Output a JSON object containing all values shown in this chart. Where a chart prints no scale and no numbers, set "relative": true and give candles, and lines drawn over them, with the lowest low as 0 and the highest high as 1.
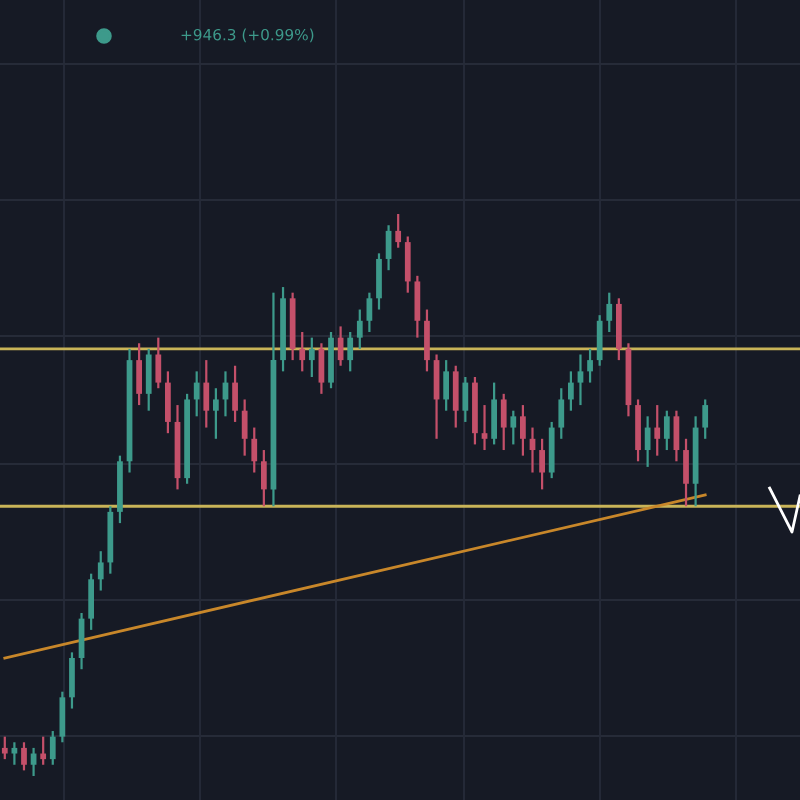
{
  "chart_data": {
    "type": "candlestick",
    "relative": true,
    "grid": true,
    "categories": [
      null,
      null,
      null,
      null,
      null,
      null,
      null,
      null,
      null,
      null,
      null,
      null,
      null,
      null,
      null,
      null,
      null,
      null,
      null,
      null,
      null,
      null,
      null,
      null,
      null,
      null,
      null,
      null,
      null,
      null,
      null,
      null,
      null,
      null,
      null,
      null,
      null,
      null,
      null,
      null,
      null,
      null,
      null,
      null,
      null,
      null,
      null,
      null,
      null,
      null,
      null,
      null,
      null,
      null,
      null,
      null,
      null,
      null,
      null,
      null,
      null,
      null,
      null,
      null,
      null,
      null,
      null,
      null,
      null,
      null,
      null,
      null,
      null,
      null
    ],
    "ohlc": [
      [
        0.05,
        0.07,
        0.03,
        0.04
      ],
      [
        0.04,
        0.06,
        0.02,
        0.05
      ],
      [
        0.05,
        0.06,
        0.01,
        0.02
      ],
      [
        0.02,
        0.05,
        0.0,
        0.04
      ],
      [
        0.04,
        0.07,
        0.02,
        0.03
      ],
      [
        0.03,
        0.08,
        0.02,
        0.07
      ],
      [
        0.07,
        0.15,
        0.06,
        0.14
      ],
      [
        0.14,
        0.22,
        0.12,
        0.21
      ],
      [
        0.21,
        0.29,
        0.19,
        0.28
      ],
      [
        0.28,
        0.36,
        0.26,
        0.35
      ],
      [
        0.35,
        0.4,
        0.33,
        0.38
      ],
      [
        0.38,
        0.48,
        0.36,
        0.47
      ],
      [
        0.47,
        0.57,
        0.45,
        0.56
      ],
      [
        0.56,
        0.76,
        0.54,
        0.74
      ],
      [
        0.74,
        0.77,
        0.66,
        0.68
      ],
      [
        0.68,
        0.76,
        0.65,
        0.75
      ],
      [
        0.75,
        0.78,
        0.69,
        0.7
      ],
      [
        0.7,
        0.72,
        0.61,
        0.63
      ],
      [
        0.63,
        0.66,
        0.51,
        0.53
      ],
      [
        0.53,
        0.68,
        0.52,
        0.67
      ],
      [
        0.67,
        0.72,
        0.64,
        0.7
      ],
      [
        0.7,
        0.74,
        0.62,
        0.65
      ],
      [
        0.65,
        0.69,
        0.6,
        0.67
      ],
      [
        0.67,
        0.72,
        0.64,
        0.7
      ],
      [
        0.7,
        0.73,
        0.63,
        0.65
      ],
      [
        0.65,
        0.67,
        0.57,
        0.6
      ],
      [
        0.6,
        0.62,
        0.54,
        0.56
      ],
      [
        0.56,
        0.58,
        0.48,
        0.51
      ],
      [
        0.51,
        0.86,
        0.48,
        0.74
      ],
      [
        0.74,
        0.87,
        0.72,
        0.85
      ],
      [
        0.85,
        0.86,
        0.74,
        0.76
      ],
      [
        0.76,
        0.79,
        0.72,
        0.74
      ],
      [
        0.74,
        0.78,
        0.71,
        0.76
      ],
      [
        0.76,
        0.77,
        0.68,
        0.7
      ],
      [
        0.7,
        0.79,
        0.69,
        0.78
      ],
      [
        0.78,
        0.8,
        0.73,
        0.74
      ],
      [
        0.74,
        0.79,
        0.72,
        0.78
      ],
      [
        0.78,
        0.83,
        0.76,
        0.81
      ],
      [
        0.81,
        0.86,
        0.79,
        0.85
      ],
      [
        0.85,
        0.93,
        0.83,
        0.92
      ],
      [
        0.92,
        0.98,
        0.9,
        0.97
      ],
      [
        0.97,
        1.0,
        0.94,
        0.95
      ],
      [
        0.95,
        0.96,
        0.86,
        0.88
      ],
      [
        0.88,
        0.89,
        0.78,
        0.81
      ],
      [
        0.81,
        0.83,
        0.72,
        0.74
      ],
      [
        0.74,
        0.75,
        0.6,
        0.67
      ],
      [
        0.67,
        0.74,
        0.65,
        0.72
      ],
      [
        0.72,
        0.73,
        0.62,
        0.65
      ],
      [
        0.65,
        0.71,
        0.63,
        0.7
      ],
      [
        0.7,
        0.71,
        0.59,
        0.61
      ],
      [
        0.61,
        0.66,
        0.58,
        0.6
      ],
      [
        0.6,
        0.7,
        0.59,
        0.67
      ],
      [
        0.67,
        0.68,
        0.58,
        0.62
      ],
      [
        0.62,
        0.65,
        0.59,
        0.64
      ],
      [
        0.64,
        0.66,
        0.57,
        0.6
      ],
      [
        0.6,
        0.62,
        0.54,
        0.58
      ],
      [
        0.58,
        0.6,
        0.51,
        0.54
      ],
      [
        0.54,
        0.63,
        0.53,
        0.62
      ],
      [
        0.62,
        0.69,
        0.6,
        0.67
      ],
      [
        0.67,
        0.72,
        0.65,
        0.7
      ],
      [
        0.7,
        0.75,
        0.66,
        0.72
      ],
      [
        0.72,
        0.76,
        0.7,
        0.74
      ],
      [
        0.74,
        0.82,
        0.73,
        0.81
      ],
      [
        0.81,
        0.86,
        0.79,
        0.84
      ],
      [
        0.84,
        0.85,
        0.74,
        0.76
      ],
      [
        0.76,
        0.77,
        0.64,
        0.66
      ],
      [
        0.66,
        0.67,
        0.56,
        0.58
      ],
      [
        0.58,
        0.64,
        0.55,
        0.62
      ],
      [
        0.62,
        0.66,
        0.57,
        0.6
      ],
      [
        0.6,
        0.65,
        0.58,
        0.64
      ],
      [
        0.64,
        0.65,
        0.56,
        0.58
      ],
      [
        0.58,
        0.6,
        0.48,
        0.52
      ],
      [
        0.52,
        0.64,
        0.48,
        0.62
      ],
      [
        0.62,
        0.67,
        0.6,
        0.66
      ]
    ],
    "colors": [
      "#c4506a",
      "#3d9a8b",
      "#c4506a",
      "#3d9a8b",
      "#c4506a",
      "#3d9a8b",
      "#3d9a8b",
      "#3d9a8b",
      "#3d9a8b",
      "#3d9a8b",
      "#3d9a8b",
      "#3d9a8b",
      "#3d9a8b",
      "#3d9a8b",
      "#c4506a",
      "#3d9a8b",
      "#c4506a",
      "#c4506a",
      "#c4506a",
      "#3d9a8b",
      "#3d9a8b",
      "#c4506a",
      "#3d9a8b",
      "#3d9a8b",
      "#c4506a",
      "#c4506a",
      "#c4506a",
      "#c4506a",
      "#3d9a8b",
      "#3d9a8b",
      "#c4506a",
      "#c4506a",
      "#3d9a8b",
      "#c4506a",
      "#3d9a8b",
      "#c4506a",
      "#3d9a8b",
      "#3d9a8b",
      "#3d9a8b",
      "#3d9a8b",
      "#3d9a8b",
      "#c4506a",
      "#c4506a",
      "#c4506a",
      "#c4506a",
      "#c4506a",
      "#3d9a8b",
      "#c4506a",
      "#3d9a8b",
      "#c4506a",
      "#c4506a",
      "#3d9a8b",
      "#c4506a",
      "#3d9a8b",
      "#c4506a",
      "#c4506a",
      "#c4506a",
      "#3d9a8b",
      "#3d9a8b",
      "#3d9a8b",
      "#3d9a8b",
      "#3d9a8b",
      "#3d9a8b",
      "#3d9a8b",
      "#c4506a",
      "#c4506a",
      "#c4506a",
      "#3d9a8b",
      "#c4506a",
      "#3d9a8b",
      "#c4506a",
      "#c4506a",
      "#3d9a8b",
      "#3d9a8b"
    ],
    "series": [
      {
        "type": "line",
        "values": [
          0.21,
          null,
          null,
          null,
          null,
          null,
          null,
          null,
          null,
          null,
          null,
          null,
          null,
          null,
          null,
          null,
          null,
          null,
          null,
          null,
          null,
          null,
          null,
          null,
          null,
          null,
          null,
          null,
          null,
          null,
          null,
          null,
          null,
          null,
          null,
          null,
          null,
          null,
          null,
          null,
          null,
          null,
          null,
          null,
          null,
          null,
          null,
          null,
          null,
          null,
          null,
          null,
          null,
          null,
          null,
          null,
          null,
          null,
          null,
          null,
          null,
          null,
          null,
          null,
          null,
          null,
          null,
          null,
          null,
          null,
          null,
          null,
          null,
          0.5
        ],
        "color": "#c8872a"
      }
    ],
    "ref_lines": [
      {
        "axis": "y",
        "value": 0.76,
        "color": "#c9b458"
      },
      {
        "axis": "y",
        "value": 0.48,
        "color": "#c9b458"
      }
    ],
    "annotations": [
      "+946.3 (+0.99%)"
    ]
  }
}
